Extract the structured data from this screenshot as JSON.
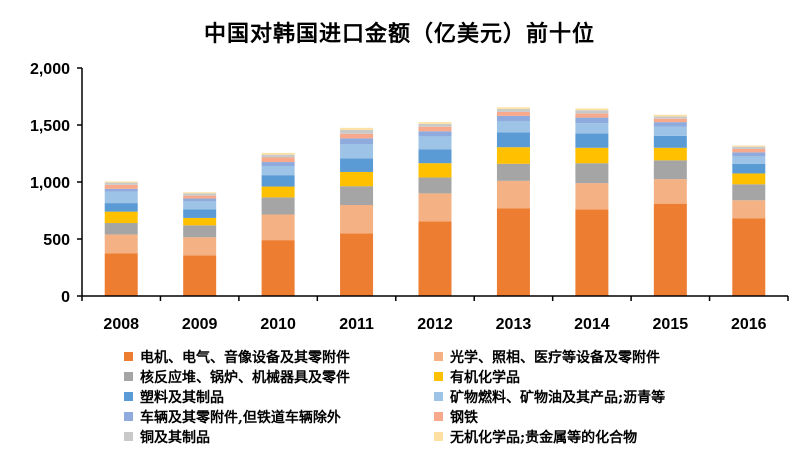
{
  "chart_data": {
    "type": "bar",
    "stacked": true,
    "title": "中国对韩国进口金额（亿美元）前十位",
    "xlabel": "",
    "ylabel": "",
    "ylim": [
      0,
      2000
    ],
    "yticks": [
      0,
      500,
      1000,
      1500,
      2000
    ],
    "ytick_labels": [
      "0",
      "500",
      "1,000",
      "1,500",
      "2,000"
    ],
    "grid": false,
    "legend_position": "bottom",
    "categories": [
      "2008",
      "2009",
      "2010",
      "2011",
      "2012",
      "2013",
      "2014",
      "2015",
      "2016"
    ],
    "series": [
      {
        "name": "电机、电气、音像设备及其零附件",
        "color": "#ED7D31",
        "values": [
          375,
          355,
          490,
          548,
          655,
          770,
          760,
          810,
          680
        ]
      },
      {
        "name": "光学、照相、医疗等设备及零附件",
        "color": "#F4B183",
        "values": [
          165,
          160,
          225,
          250,
          245,
          240,
          230,
          215,
          160
        ]
      },
      {
        "name": "核反应堆、锅炉、机械器具及零件",
        "color": "#A5A5A5",
        "values": [
          100,
          105,
          150,
          165,
          140,
          150,
          175,
          165,
          140
        ]
      },
      {
        "name": "有机化学品",
        "color": "#FFC000",
        "values": [
          100,
          65,
          95,
          125,
          125,
          145,
          135,
          110,
          95
        ]
      },
      {
        "name": "塑料及其制品",
        "color": "#5B9BD5",
        "values": [
          75,
          75,
          100,
          120,
          120,
          130,
          125,
          105,
          85
        ]
      },
      {
        "name": "矿物燃料、矿物油及其产品;沥青等",
        "color": "#9DC3E6",
        "values": [
          100,
          70,
          80,
          125,
          115,
          100,
          90,
          80,
          65
        ]
      },
      {
        "name": "车辆及其零附件,但铁道车辆除外",
        "color": "#8FAADC",
        "values": [
          25,
          25,
          35,
          50,
          45,
          45,
          50,
          40,
          35
        ]
      },
      {
        "name": "钢铁",
        "color": "#F8A98B",
        "values": [
          35,
          25,
          40,
          40,
          40,
          35,
          35,
          30,
          30
        ]
      },
      {
        "name": "铜及其制品",
        "color": "#C9C9C9",
        "values": [
          20,
          20,
          25,
          35,
          25,
          25,
          30,
          20,
          20
        ]
      },
      {
        "name": "无机化学品;贵金属等的化合物",
        "color": "#FFE0A3",
        "values": [
          10,
          10,
          15,
          17,
          15,
          15,
          15,
          15,
          10
        ]
      }
    ]
  }
}
